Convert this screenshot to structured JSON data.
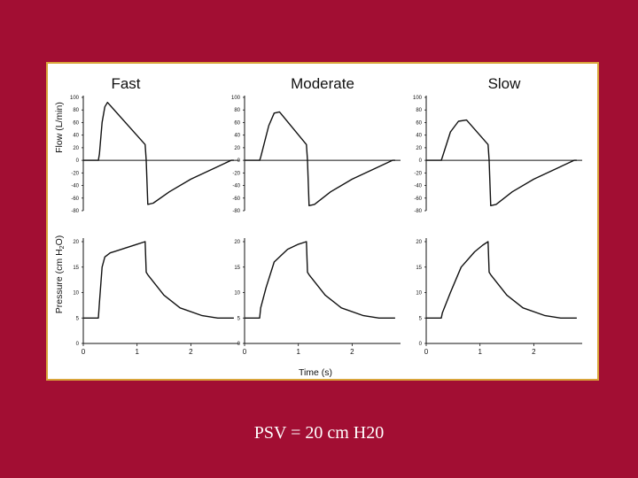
{
  "caption": "PSV = 20 cm H20",
  "colors": {
    "background": "#a20e33",
    "panel_border": "#d9a53a",
    "line": "#111111"
  },
  "chart_data": {
    "type": "line",
    "x_axis": {
      "label": "Time (s)",
      "ticks": [
        0,
        1,
        2
      ],
      "range": [
        0,
        2.9
      ]
    },
    "y_axis_flow": {
      "label": "Flow (L/min)",
      "ticks": [
        100,
        80,
        60,
        40,
        20,
        0,
        -20,
        -40,
        -60,
        -80
      ],
      "range": [
        -80,
        100
      ]
    },
    "y_axis_pressure": {
      "label_parts": [
        "Pressure (cm H",
        "2",
        "O)"
      ],
      "ticks": [
        20,
        15,
        10,
        5,
        0
      ],
      "range": [
        0,
        20
      ]
    },
    "columns": [
      {
        "title": "Fast",
        "flow": {
          "x": [
            0,
            0.28,
            0.3,
            0.35,
            0.4,
            0.45,
            1.15,
            1.17,
            1.2,
            1.3,
            1.6,
            2.0,
            2.5,
            2.75,
            2.8
          ],
          "y": [
            0,
            0,
            10,
            60,
            85,
            92,
            25,
            0,
            -70,
            -68,
            -50,
            -30,
            -10,
            0,
            0
          ]
        },
        "pressure": {
          "x": [
            0,
            0.28,
            0.3,
            0.35,
            0.4,
            0.5,
            1.0,
            1.15,
            1.17,
            1.2,
            1.5,
            1.8,
            2.2,
            2.5,
            2.8
          ],
          "y": [
            5,
            5,
            8,
            15,
            17,
            17.8,
            19.5,
            20,
            14,
            13.5,
            9.5,
            7,
            5.5,
            5,
            5
          ]
        }
      },
      {
        "title": "Moderate",
        "flow": {
          "x": [
            0,
            0.28,
            0.3,
            0.45,
            0.55,
            0.65,
            1.15,
            1.17,
            1.2,
            1.3,
            1.6,
            2.0,
            2.5,
            2.75,
            2.8
          ],
          "y": [
            0,
            0,
            5,
            55,
            75,
            77,
            25,
            0,
            -72,
            -70,
            -50,
            -30,
            -10,
            0,
            0
          ]
        },
        "pressure": {
          "x": [
            0,
            0.28,
            0.3,
            0.4,
            0.55,
            0.8,
            1.0,
            1.15,
            1.17,
            1.2,
            1.5,
            1.8,
            2.2,
            2.5,
            2.8
          ],
          "y": [
            5,
            5,
            7,
            11,
            16,
            18.5,
            19.5,
            20,
            14,
            13.5,
            9.5,
            7,
            5.5,
            5,
            5
          ]
        }
      },
      {
        "title": "Slow",
        "flow": {
          "x": [
            0,
            0.28,
            0.3,
            0.45,
            0.6,
            0.75,
            1.15,
            1.17,
            1.2,
            1.3,
            1.6,
            2.0,
            2.5,
            2.75,
            2.8
          ],
          "y": [
            0,
            0,
            5,
            45,
            62,
            64,
            25,
            0,
            -72,
            -70,
            -50,
            -30,
            -10,
            0,
            0
          ]
        },
        "pressure": {
          "x": [
            0,
            0.28,
            0.3,
            0.45,
            0.65,
            0.9,
            1.05,
            1.15,
            1.17,
            1.2,
            1.5,
            1.8,
            2.2,
            2.5,
            2.8
          ],
          "y": [
            5,
            5,
            6,
            10,
            15,
            18,
            19.3,
            20,
            14,
            13.5,
            9.5,
            7,
            5.5,
            5,
            5
          ]
        }
      }
    ]
  }
}
